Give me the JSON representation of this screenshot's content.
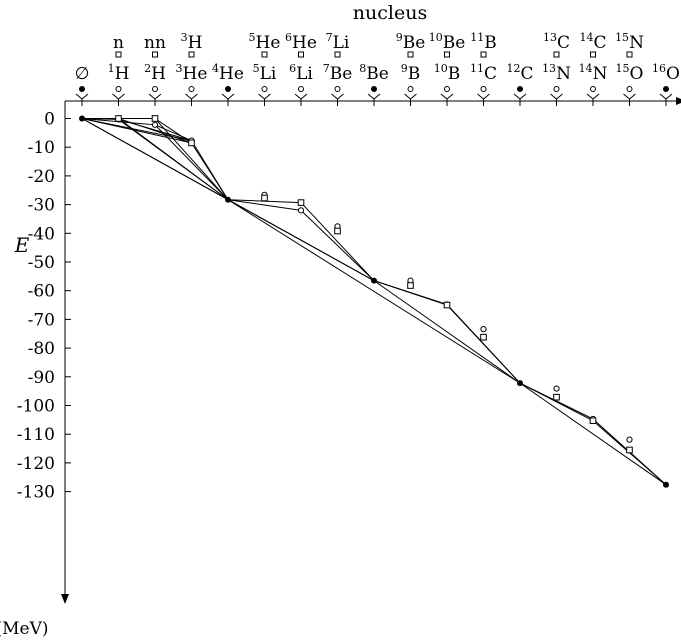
{
  "chart_data": {
    "type": "scatter",
    "title": "nucleus",
    "ylabel": "E",
    "yunit": "(MeV)",
    "ylim": [
      0,
      -130
    ],
    "yticks": [
      0,
      -10,
      -20,
      -30,
      -40,
      -50,
      -60,
      -70,
      -80,
      -90,
      -100,
      -110,
      -120,
      -130
    ],
    "grid": false,
    "nuclei_row1": [
      {
        "name": "∅",
        "A": 0
      },
      {
        "name": "H",
        "mass": "1",
        "A": 1
      },
      {
        "name": "H",
        "mass": "2",
        "A": 2
      },
      {
        "name": "He",
        "mass": "3",
        "A": 3
      },
      {
        "name": "He",
        "mass": "4",
        "A": 4
      },
      {
        "name": "Li",
        "mass": "5",
        "A": 5
      },
      {
        "name": "Li",
        "mass": "6",
        "A": 6
      },
      {
        "name": "Be",
        "mass": "7",
        "A": 7
      },
      {
        "name": "Be",
        "mass": "8",
        "A": 8
      },
      {
        "name": "B",
        "mass": "9",
        "A": 9
      },
      {
        "name": "B",
        "mass": "10",
        "A": 10
      },
      {
        "name": "C",
        "mass": "11",
        "A": 11
      },
      {
        "name": "C",
        "mass": "12",
        "A": 12
      },
      {
        "name": "N",
        "mass": "13",
        "A": 13
      },
      {
        "name": "N",
        "mass": "14",
        "A": 14
      },
      {
        "name": "O",
        "mass": "15",
        "A": 15
      },
      {
        "name": "O",
        "mass": "16",
        "A": 16
      }
    ],
    "nuclei_row2": [
      {
        "name": "n",
        "mass": "",
        "A": 1
      },
      {
        "name": "nn",
        "mass": "",
        "A": 2
      },
      {
        "name": "H",
        "mass": "3",
        "A": 3
      },
      {
        "name": "He",
        "mass": "5",
        "A": 5
      },
      {
        "name": "He",
        "mass": "6",
        "A": 6
      },
      {
        "name": "Li",
        "mass": "7",
        "A": 7
      },
      {
        "name": "Be",
        "mass": "9",
        "A": 9
      },
      {
        "name": "Be",
        "mass": "10",
        "A": 10
      },
      {
        "name": "B",
        "mass": "11",
        "A": 11
      },
      {
        "name": "C",
        "mass": "13",
        "A": 13
      },
      {
        "name": "C",
        "mass": "14",
        "A": 14
      },
      {
        "name": "N",
        "mass": "15",
        "A": 15
      }
    ],
    "filled_A": [
      0,
      4,
      8,
      12,
      16
    ],
    "series": [
      {
        "marker": "filled-circle",
        "points": [
          {
            "A": 0,
            "E": 0
          },
          {
            "A": 4,
            "E": -28.3
          },
          {
            "A": 8,
            "E": -56.5
          },
          {
            "A": 12,
            "E": -92.2
          },
          {
            "A": 16,
            "E": -127.6
          }
        ]
      },
      {
        "marker": "open-circle",
        "points": [
          {
            "A": 1,
            "E": -0.3
          },
          {
            "A": 2,
            "E": -2.2
          },
          {
            "A": 3,
            "E": -7.7
          },
          {
            "A": 5,
            "E": -26.6
          },
          {
            "A": 6,
            "E": -32.0
          },
          {
            "A": 7,
            "E": -37.6
          },
          {
            "A": 9,
            "E": -56.5
          },
          {
            "A": 10,
            "E": -64.8
          },
          {
            "A": 11,
            "E": -73.4
          },
          {
            "A": 13,
            "E": -94.1
          },
          {
            "A": 14,
            "E": -104.7
          },
          {
            "A": 15,
            "E": -111.9
          }
        ]
      },
      {
        "marker": "open-square",
        "points": [
          {
            "A": 1,
            "E": 0
          },
          {
            "A": 2,
            "E": 0
          },
          {
            "A": 3,
            "E": -8.5
          },
          {
            "A": 5,
            "E": -27.7
          },
          {
            "A": 6,
            "E": -29.3
          },
          {
            "A": 7,
            "E": -39.2
          },
          {
            "A": 9,
            "E": -58.2
          },
          {
            "A": 10,
            "E": -65.0
          },
          {
            "A": 11,
            "E": -76.2
          },
          {
            "A": 13,
            "E": -97.1
          },
          {
            "A": 14,
            "E": -105.3
          },
          {
            "A": 15,
            "E": -115.5
          }
        ]
      }
    ],
    "lines": [
      [
        {
          "A": 0,
          "E": 0
        },
        {
          "A": 1,
          "E": -0.3
        }
      ],
      [
        {
          "A": 0,
          "E": 0
        },
        {
          "A": 1,
          "E": 0
        }
      ],
      [
        {
          "A": 0,
          "E": 0
        },
        {
          "A": 2,
          "E": -2.2
        }
      ],
      [
        {
          "A": 0,
          "E": 0
        },
        {
          "A": 2,
          "E": 0
        }
      ],
      [
        {
          "A": 0,
          "E": 0
        },
        {
          "A": 3,
          "E": -7.7
        }
      ],
      [
        {
          "A": 0,
          "E": 0
        },
        {
          "A": 3,
          "E": -8.5
        }
      ],
      [
        {
          "A": 0,
          "E": 0
        },
        {
          "A": 4,
          "E": -28.3
        }
      ],
      [
        {
          "A": 0,
          "E": 0
        },
        {
          "A": 8,
          "E": -56.5
        }
      ],
      [
        {
          "A": 1,
          "E": -0.3
        },
        {
          "A": 3,
          "E": -7.7
        }
      ],
      [
        {
          "A": 1,
          "E": 0
        },
        {
          "A": 3,
          "E": -8.5
        }
      ],
      [
        {
          "A": 2,
          "E": -2.2
        },
        {
          "A": 3,
          "E": -7.7
        }
      ],
      [
        {
          "A": 2,
          "E": 0
        },
        {
          "A": 3,
          "E": -8.5
        }
      ],
      [
        {
          "A": 1,
          "E": -0.3
        },
        {
          "A": 4,
          "E": -28.3
        }
      ],
      [
        {
          "A": 1,
          "E": 0
        },
        {
          "A": 4,
          "E": -28.3
        }
      ],
      [
        {
          "A": 2,
          "E": -2.2
        },
        {
          "A": 4,
          "E": -28.3
        }
      ],
      [
        {
          "A": 2,
          "E": 0
        },
        {
          "A": 4,
          "E": -28.3
        }
      ],
      [
        {
          "A": 3,
          "E": -7.7
        },
        {
          "A": 4,
          "E": -28.3
        }
      ],
      [
        {
          "A": 3,
          "E": -8.5
        },
        {
          "A": 4,
          "E": -28.3
        }
      ],
      [
        {
          "A": 4,
          "E": -28.3
        },
        {
          "A": 6,
          "E": -32.0
        }
      ],
      [
        {
          "A": 4,
          "E": -28.3
        },
        {
          "A": 6,
          "E": -29.3
        }
      ],
      [
        {
          "A": 6,
          "E": -32.0
        },
        {
          "A": 8,
          "E": -56.5
        }
      ],
      [
        {
          "A": 6,
          "E": -29.3
        },
        {
          "A": 8,
          "E": -56.5
        }
      ],
      [
        {
          "A": 4,
          "E": -28.3
        },
        {
          "A": 8,
          "E": -56.5
        }
      ],
      [
        {
          "A": 4,
          "E": -28.3
        },
        {
          "A": 12,
          "E": -92.2
        }
      ],
      [
        {
          "A": 8,
          "E": -56.5
        },
        {
          "A": 10,
          "E": -64.8
        }
      ],
      [
        {
          "A": 8,
          "E": -56.5
        },
        {
          "A": 10,
          "E": -65.0
        }
      ],
      [
        {
          "A": 10,
          "E": -64.8
        },
        {
          "A": 12,
          "E": -92.2
        }
      ],
      [
        {
          "A": 10,
          "E": -65.0
        },
        {
          "A": 12,
          "E": -92.2
        }
      ],
      [
        {
          "A": 8,
          "E": -56.5
        },
        {
          "A": 12,
          "E": -92.2
        }
      ],
      [
        {
          "A": 12,
          "E": -92.2
        },
        {
          "A": 14,
          "E": -104.7
        }
      ],
      [
        {
          "A": 12,
          "E": -92.2
        },
        {
          "A": 14,
          "E": -105.3
        }
      ],
      [
        {
          "A": 14,
          "E": -104.7
        },
        {
          "A": 16,
          "E": -127.6
        }
      ],
      [
        {
          "A": 14,
          "E": -105.3
        },
        {
          "A": 16,
          "E": -127.6
        }
      ],
      [
        {
          "A": 12,
          "E": -92.2
        },
        {
          "A": 16,
          "E": -127.6
        }
      ]
    ]
  }
}
